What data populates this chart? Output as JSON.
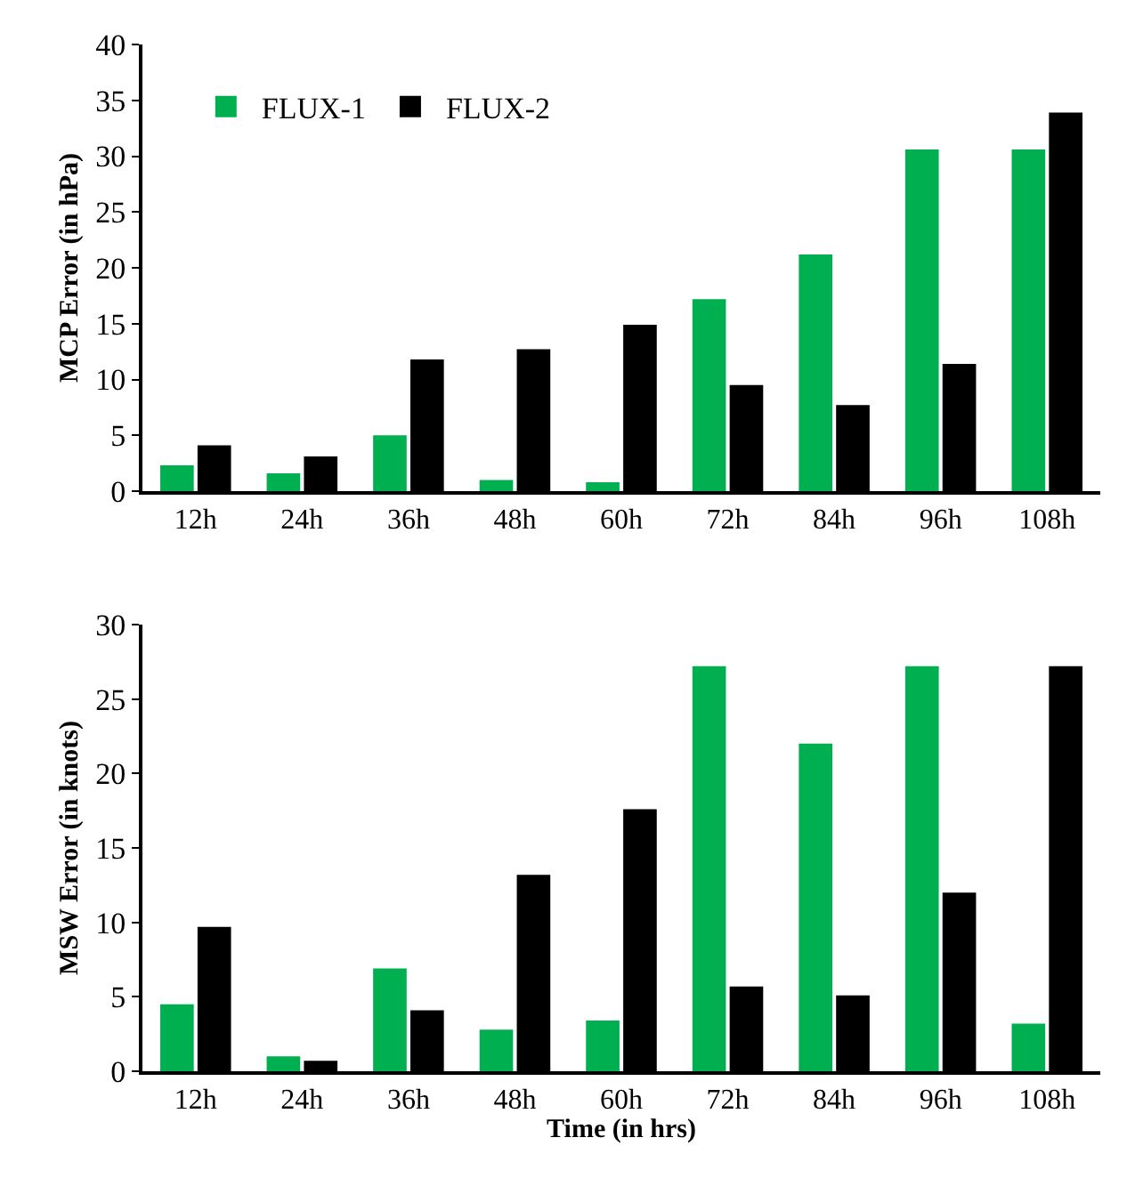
{
  "chart_data": [
    {
      "type": "bar",
      "ylabel": "MCP Error (in hPa)",
      "categories": [
        "12h",
        "24h",
        "36h",
        "48h",
        "60h",
        "72h",
        "84h",
        "96h",
        "108h"
      ],
      "series": [
        {
          "name": "FLUX-1",
          "color": "#00b050",
          "values": [
            2.3,
            1.6,
            5.0,
            1.0,
            0.8,
            17.2,
            21.2,
            30.6,
            30.6
          ]
        },
        {
          "name": "FLUX-2",
          "color": "#000000",
          "values": [
            4.1,
            3.1,
            11.8,
            12.7,
            14.9,
            9.5,
            7.7,
            11.4,
            33.9
          ]
        }
      ],
      "ylim": [
        0,
        40
      ],
      "yticks": [
        0,
        5,
        10,
        15,
        20,
        25,
        30,
        35,
        40
      ],
      "legend": "top left"
    },
    {
      "type": "bar",
      "ylabel": "MSW Error (in knots)",
      "xlabel": "Time (in hrs)",
      "categories": [
        "12h",
        "24h",
        "36h",
        "48h",
        "60h",
        "72h",
        "84h",
        "96h",
        "108h"
      ],
      "series": [
        {
          "color": "#00b050",
          "values": [
            4.5,
            1.0,
            6.9,
            2.8,
            3.4,
            27.2,
            22.0,
            27.2,
            3.2
          ]
        },
        {
          "color": "#000000",
          "values": [
            9.7,
            0.7,
            4.1,
            13.2,
            17.6,
            5.7,
            5.1,
            12.0,
            27.2
          ]
        }
      ],
      "ylim": [
        0,
        30
      ],
      "yticks": [
        0,
        5,
        10,
        15,
        20,
        25,
        30
      ],
      "legend": false
    }
  ]
}
